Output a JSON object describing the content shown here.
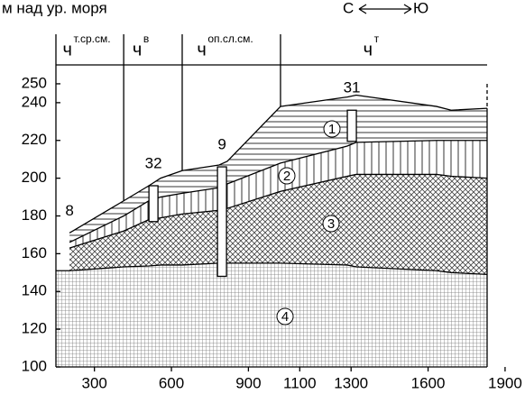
{
  "chart_data": {
    "type": "area",
    "y_label": "м над ур. моря",
    "direction": [
      "С",
      "Ю"
    ],
    "zones": [
      {
        "label": "ч",
        "sup": "т.ср.см."
      },
      {
        "label": "ч",
        "sup": "в"
      },
      {
        "label": "ч",
        "sup": "оп.сл.см."
      },
      {
        "label": "ч",
        "sup": "т"
      }
    ],
    "zone_bounds": [
      414,
      642,
      1025
    ],
    "x": [
      203,
      414,
      512,
      558,
      642,
      786,
      818,
      1025,
      1285,
      1320,
      1633,
      1690,
      1830
    ],
    "boundaries": [
      {
        "values": [
          171,
          188,
          196,
          200,
          204,
          207,
          209,
          238,
          243,
          244,
          238,
          236,
          237
        ]
      },
      {
        "values": [
          166,
          180,
          188,
          190,
          192,
          195,
          197,
          208,
          217,
          219,
          220,
          220,
          220
        ]
      },
      {
        "values": [
          163,
          172,
          178,
          179,
          181,
          183,
          184,
          193,
          201,
          202,
          202,
          201,
          200
        ]
      },
      {
        "values": [
          151,
          153,
          153.5,
          154,
          154,
          155,
          155,
          155,
          154,
          153,
          151,
          150,
          149
        ]
      }
    ],
    "layers": [
      "1",
      "2",
      "3",
      "4"
    ],
    "wells": [
      {
        "name": "8",
        "x": 203
      },
      {
        "name": "32",
        "x": 530,
        "top": 196,
        "bottom": 177
      },
      {
        "name": "9",
        "x": 797,
        "top": 206,
        "bottom": 148
      },
      {
        "name": "31",
        "x": 1303,
        "top": 236,
        "bottom": 219.5
      }
    ],
    "xlim": [
      150,
      1830
    ],
    "xticks": [
      300,
      600,
      900,
      1100,
      1300,
      1600,
      1900
    ],
    "ylim": [
      100,
      260
    ],
    "yticks": [
      100,
      120,
      140,
      160,
      180,
      200,
      220,
      240,
      250
    ]
  }
}
